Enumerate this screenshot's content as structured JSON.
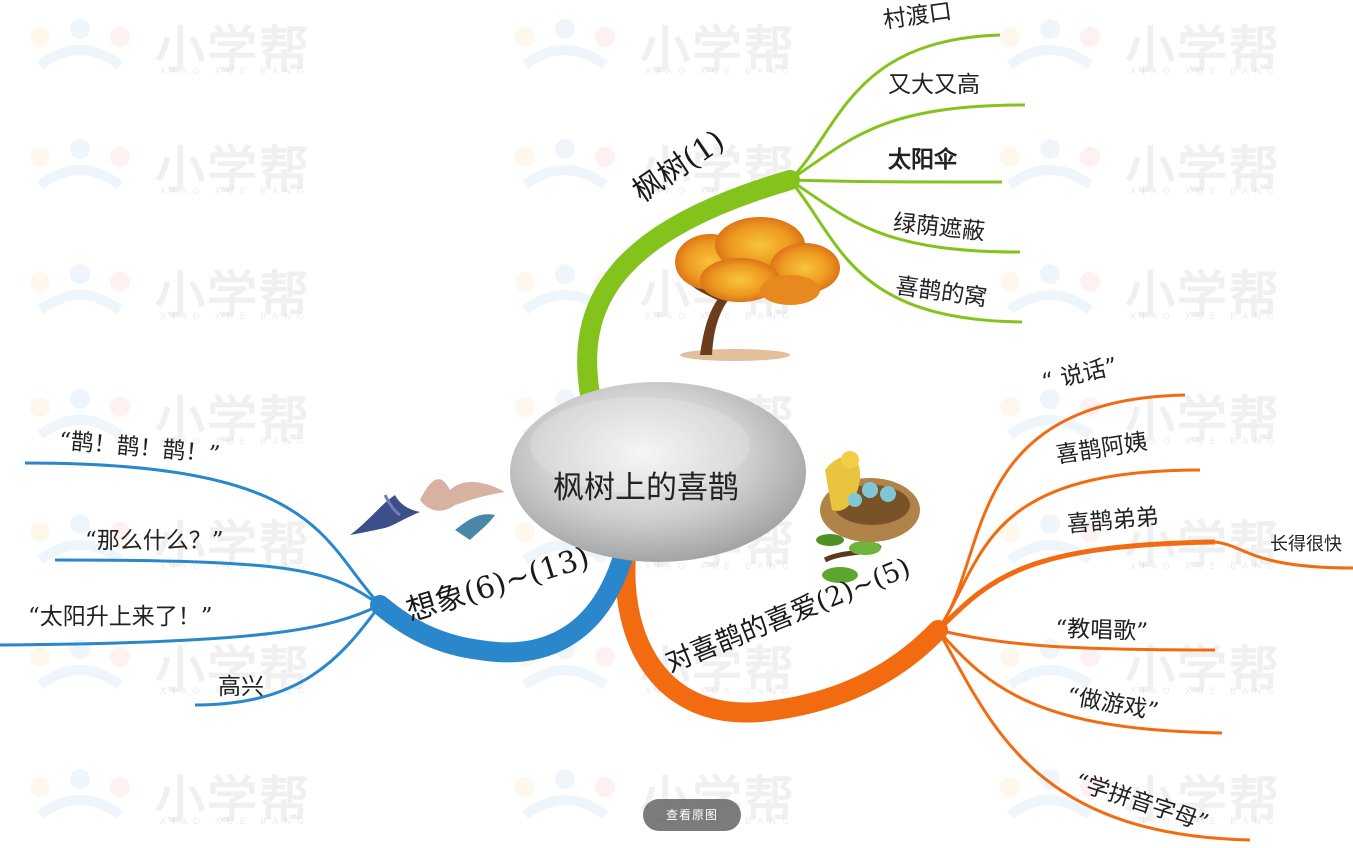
{
  "watermark": {
    "text": "小学帮",
    "sub": "XIAO XUE BANG"
  },
  "center": {
    "label": "枫树上的喜鹊"
  },
  "branches": {
    "tree": {
      "label": "枫树(1)",
      "color": "#84c31c",
      "leaves": [
        "村渡口",
        "又大又高",
        "太阳伞",
        "绿荫遮蔽",
        "喜鹊的窝"
      ]
    },
    "love": {
      "label": "对喜鹊的喜爱(2)~(5)",
      "color": "#f26b10",
      "leaves": [
        "“ 说话”",
        "喜鹊阿姨",
        "喜鹊弟弟",
        "“教唱歌”",
        "“做游戏”",
        "“学拼音字母”"
      ],
      "subleaf": "长得很快"
    },
    "imagine": {
      "label": "想象(6)~(13)",
      "color": "#2a87cc",
      "leaves": [
        "“鹊！鹊！鹊！”",
        "“那么什么？”",
        "“太阳升上来了！”",
        "高兴"
      ]
    }
  },
  "button": {
    "view_original": "查看原图"
  }
}
